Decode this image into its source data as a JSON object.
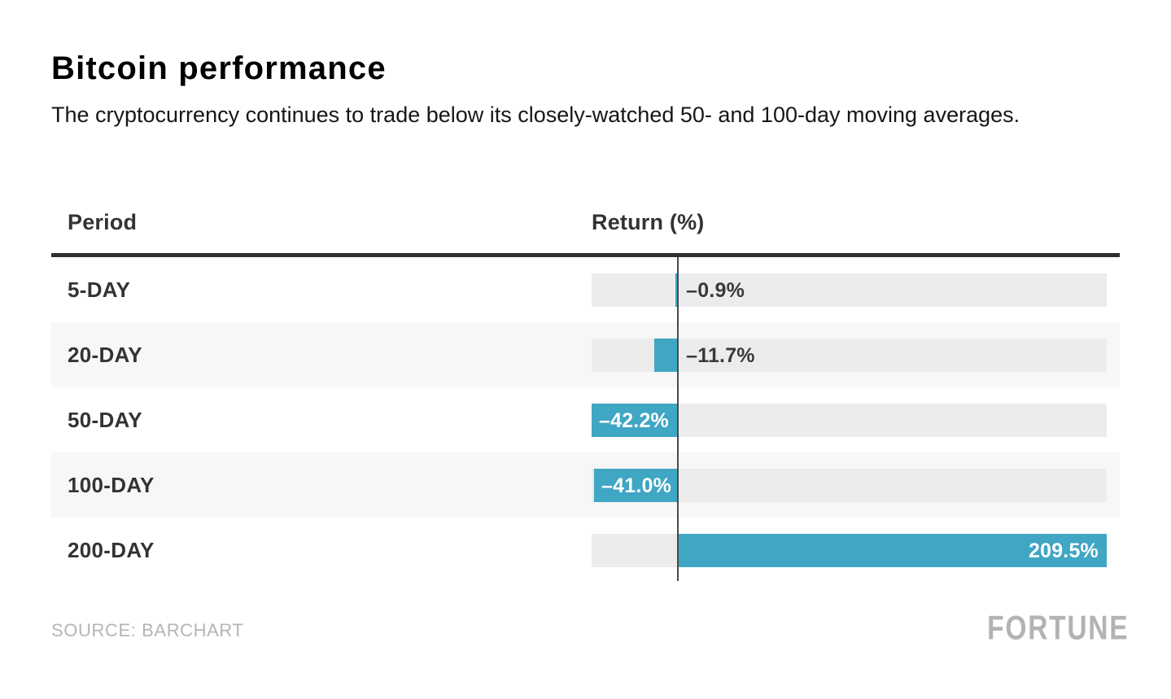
{
  "header": {
    "title": "Bitcoin performance",
    "subtitle": "The cryptocurrency continues to trade below its closely-watched 50- and 100-day moving averages."
  },
  "table": {
    "period_header": "Period",
    "return_header": "Return (%)"
  },
  "chart_data": {
    "type": "bar",
    "orientation": "horizontal",
    "title": "Bitcoin performance",
    "xlabel": "Return (%)",
    "ylabel": "Period",
    "categories": [
      "5-DAY",
      "20-DAY",
      "50-DAY",
      "100-DAY",
      "200-DAY"
    ],
    "values": [
      -0.9,
      -11.7,
      -42.2,
      -41.0,
      209.5
    ],
    "value_labels": [
      "–0.9%",
      "–11.7%",
      "–42.2%",
      "–41.0%",
      "209.5%"
    ],
    "label_inside": [
      false,
      false,
      true,
      true,
      true
    ],
    "xlim": [
      -42.2,
      209.5
    ],
    "grid": false,
    "legend": "none",
    "colors": {
      "bar": "#3fa6c4",
      "track": "#ececec",
      "zebra": "#f7f7f7",
      "axis_line": "#4a4a4a",
      "header_rule": "#2e2e2e",
      "label_dark": "#3a3a3a",
      "label_light": "#ffffff"
    }
  },
  "footer": {
    "source": "SOURCE: BARCHART",
    "brand": "FORTUNE"
  }
}
